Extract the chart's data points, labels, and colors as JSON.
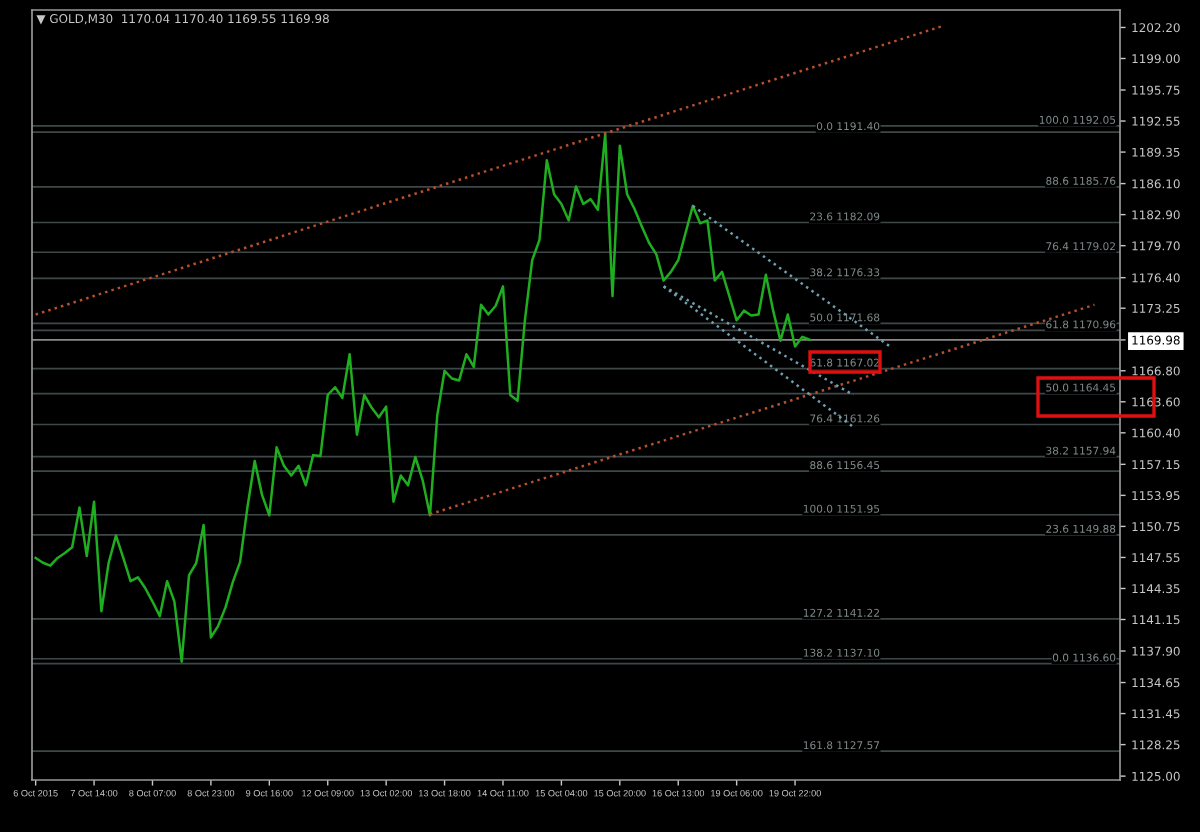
{
  "chart_data": {
    "type": "line",
    "title": "▼ GOLD,M30  1170.04 1170.40 1169.55 1169.98",
    "categories": [
      "6 Oct 2015",
      null,
      null,
      null,
      null,
      null,
      null,
      null,
      "7 Oct 14:00",
      null,
      null,
      null,
      null,
      null,
      null,
      null,
      "8 Oct 07:00",
      null,
      null,
      null,
      null,
      null,
      null,
      null,
      "8 Oct 23:00",
      null,
      null,
      null,
      null,
      null,
      null,
      null,
      "9 Oct 16:00",
      null,
      null,
      null,
      null,
      null,
      null,
      null,
      "12 Oct 09:00",
      null,
      null,
      null,
      null,
      null,
      null,
      null,
      "13 Oct 02:00",
      null,
      null,
      null,
      null,
      null,
      null,
      null,
      "13 Oct 18:00",
      null,
      null,
      null,
      null,
      null,
      null,
      null,
      "14 Oct 11:00",
      null,
      null,
      null,
      null,
      null,
      null,
      null,
      "15 Oct 04:00",
      null,
      null,
      null,
      null,
      null,
      null,
      null,
      "15 Oct 20:00",
      null,
      null,
      null,
      null,
      null,
      null,
      null,
      "16 Oct 13:00",
      null,
      null,
      null,
      null,
      null,
      null,
      null,
      "19 Oct 06:00",
      null,
      null,
      null,
      null,
      null,
      null,
      null,
      "19 Oct 22:00",
      null,
      null,
      null,
      null,
      null,
      null,
      null,
      null,
      null,
      null,
      null,
      null,
      null,
      null,
      null,
      null,
      null,
      null,
      null,
      null,
      null,
      null,
      null,
      null,
      null,
      null,
      null,
      null,
      null,
      null,
      null,
      null,
      null,
      null,
      null,
      null,
      null,
      null,
      null,
      null,
      null,
      null,
      null,
      null
    ],
    "series": [
      {
        "color": "#1fae1f",
        "values": [
          1147.5,
          1147.0,
          1146.7,
          1147.5,
          1148.0,
          1148.6,
          1152.7,
          1147.7,
          1153.3,
          1142.0,
          1147.0,
          1149.8,
          1147.5,
          1145.1,
          1145.5,
          1144.4,
          1143.0,
          1141.5,
          1145.1,
          1143.0,
          1136.8,
          1145.7,
          1147.0,
          1150.9,
          1139.3,
          1140.5,
          1142.4,
          1145.0,
          1147.1,
          1152.7,
          1157.5,
          1154.0,
          1151.9,
          1158.9,
          1157.0,
          1156.0,
          1157.0,
          1155.0,
          1158.1,
          1158.0,
          1164.3,
          1165.1,
          1164.0,
          1168.5,
          1160.2,
          1164.3,
          1163.0,
          1162.0,
          1163.1,
          1153.3,
          1156.0,
          1155.0,
          1157.9,
          1155.5,
          1151.9,
          1162.2,
          1166.8,
          1166.0,
          1165.8,
          1168.5,
          1167.2,
          1173.6,
          1172.6,
          1173.5,
          1175.5,
          1164.3,
          1163.7,
          1172.0,
          1178.2,
          1180.3,
          1188.5,
          1185.0,
          1184.0,
          1182.3,
          1185.8,
          1184.0,
          1184.5,
          1183.4,
          1191.2,
          1174.5,
          1190.0,
          1185.0,
          1183.5,
          1181.7,
          1180.0,
          1178.8,
          1176.1,
          1177.0,
          1178.2,
          1181.0,
          1183.8,
          1182.0,
          1182.3,
          1176.1,
          1177.0,
          1174.5,
          1172.0,
          1173.0,
          1172.5,
          1172.6,
          1176.7,
          1173.0,
          1169.9,
          1172.6,
          1169.3,
          1170.3,
          1170.0,
          null,
          null,
          null,
          null,
          null,
          null,
          null,
          null,
          null,
          null,
          null,
          null,
          null,
          null,
          null,
          null,
          null,
          null,
          null,
          null,
          null,
          null,
          null,
          null,
          null,
          null,
          null,
          null,
          null,
          null,
          null,
          null,
          null,
          null,
          null,
          null,
          null,
          null,
          null,
          null,
          null,
          null
        ]
      },
      {
        "color": "#b8502a",
        "line_style": "dotted",
        "values": [
          1172.6,
          null,
          null,
          null,
          null,
          null,
          null,
          null,
          null,
          null,
          null,
          null,
          null,
          null,
          null,
          null,
          null,
          null,
          null,
          null,
          null,
          null,
          null,
          null,
          null,
          null,
          null,
          null,
          null,
          null,
          null,
          null,
          null,
          null,
          null,
          null,
          null,
          null,
          null,
          null,
          null,
          null,
          null,
          null,
          null,
          null,
          null,
          null,
          null,
          null,
          null,
          null,
          null,
          null,
          null,
          null,
          null,
          null,
          null,
          null,
          null,
          null,
          null,
          null,
          null,
          null,
          null,
          null,
          null,
          null,
          null,
          null,
          null,
          null,
          null,
          null,
          null,
          null,
          null,
          null,
          null,
          null,
          null,
          null,
          null,
          null,
          null,
          null,
          null,
          null,
          null,
          null,
          null,
          null,
          null,
          null,
          null,
          null,
          null,
          null,
          null,
          null,
          null,
          null,
          null,
          null,
          null,
          null,
          null,
          null,
          null,
          null,
          null,
          null,
          null,
          null,
          null,
          null,
          null,
          null,
          null,
          null,
          null,
          null,
          1202.3,
          null,
          null,
          null,
          null,
          null,
          null,
          null,
          null,
          null,
          null,
          null,
          null,
          null,
          null,
          null,
          null,
          null,
          null,
          null,
          null,
          null,
          null,
          null,
          null
        ]
      },
      {
        "color": "#b8502a",
        "line_style": "dotted",
        "values": [
          null,
          null,
          null,
          null,
          null,
          null,
          null,
          null,
          null,
          null,
          null,
          null,
          null,
          null,
          null,
          null,
          null,
          null,
          null,
          null,
          null,
          null,
          null,
          null,
          null,
          null,
          null,
          null,
          null,
          null,
          null,
          null,
          null,
          null,
          null,
          null,
          null,
          null,
          null,
          null,
          null,
          null,
          null,
          null,
          null,
          null,
          null,
          null,
          null,
          null,
          null,
          null,
          null,
          null,
          1152.0,
          null,
          null,
          null,
          null,
          null,
          null,
          null,
          null,
          null,
          null,
          null,
          null,
          null,
          null,
          null,
          null,
          null,
          null,
          null,
          null,
          null,
          null,
          null,
          null,
          null,
          null,
          null,
          null,
          null,
          null,
          null,
          null,
          null,
          null,
          null,
          null,
          null,
          null,
          null,
          null,
          null,
          null,
          null,
          null,
          null,
          null,
          null,
          null,
          null,
          null,
          null,
          null,
          null,
          null,
          null,
          null,
          null,
          null,
          null,
          null,
          null,
          null,
          null,
          null,
          null,
          null,
          null,
          null,
          null,
          null,
          null,
          null,
          null,
          null,
          null,
          null,
          null,
          null,
          null,
          null,
          null,
          null,
          null,
          null,
          null,
          null,
          null,
          null,
          null,
          null,
          1173.6,
          null,
          null,
          null
        ]
      },
      {
        "color": "#6f9fae",
        "line_style": "dotted",
        "values": [
          null,
          null,
          null,
          null,
          null,
          null,
          null,
          null,
          null,
          null,
          null,
          null,
          null,
          null,
          null,
          null,
          null,
          null,
          null,
          null,
          null,
          null,
          null,
          null,
          null,
          null,
          null,
          null,
          null,
          null,
          null,
          null,
          null,
          null,
          null,
          null,
          null,
          null,
          null,
          null,
          null,
          null,
          null,
          null,
          null,
          null,
          null,
          null,
          null,
          null,
          null,
          null,
          null,
          null,
          null,
          null,
          null,
          null,
          null,
          null,
          null,
          null,
          null,
          null,
          null,
          null,
          null,
          null,
          null,
          null,
          null,
          null,
          null,
          null,
          null,
          null,
          null,
          null,
          null,
          null,
          null,
          null,
          null,
          null,
          null,
          null,
          null,
          null,
          null,
          null,
          1183.8,
          null,
          null,
          null,
          null,
          null,
          null,
          null,
          null,
          null,
          null,
          null,
          null,
          null,
          null,
          null,
          null,
          null,
          null,
          null,
          null,
          null,
          null,
          null,
          null,
          null,
          null,
          1169.3,
          null,
          null,
          null,
          null,
          null,
          null,
          null,
          null,
          null,
          null,
          null,
          null,
          null,
          null,
          null,
          null,
          null,
          null,
          null,
          null,
          null,
          null,
          null,
          null,
          null,
          null,
          null,
          null,
          null,
          null,
          null
        ]
      },
      {
        "color": "#6f9fae",
        "line_style": "dotted",
        "values": [
          null,
          null,
          null,
          null,
          null,
          null,
          null,
          null,
          null,
          null,
          null,
          null,
          null,
          null,
          null,
          null,
          null,
          null,
          null,
          null,
          null,
          null,
          null,
          null,
          null,
          null,
          null,
          null,
          null,
          null,
          null,
          null,
          null,
          null,
          null,
          null,
          null,
          null,
          null,
          null,
          null,
          null,
          null,
          null,
          null,
          null,
          null,
          null,
          null,
          null,
          null,
          null,
          null,
          null,
          null,
          null,
          null,
          null,
          null,
          null,
          null,
          null,
          null,
          null,
          null,
          null,
          null,
          null,
          null,
          null,
          null,
          null,
          null,
          null,
          null,
          null,
          null,
          null,
          null,
          null,
          null,
          null,
          null,
          null,
          null,
          null,
          1175.5,
          null,
          null,
          null,
          null,
          null,
          null,
          null,
          null,
          null,
          null,
          null,
          null,
          null,
          null,
          null,
          null,
          null,
          null,
          null,
          null,
          null,
          null,
          null,
          null,
          null,
          1164.3,
          null,
          null,
          null,
          null,
          null,
          null,
          null,
          null,
          null,
          null,
          null,
          null,
          null,
          null,
          null,
          null,
          null,
          null,
          null,
          null,
          null,
          null,
          null,
          null,
          null,
          null,
          null,
          null,
          null,
          null,
          null,
          null,
          null,
          null,
          null,
          null
        ]
      },
      {
        "color": "#6f9fae",
        "line_style": "dotted",
        "values": [
          null,
          null,
          null,
          null,
          null,
          null,
          null,
          null,
          null,
          null,
          null,
          null,
          null,
          null,
          null,
          null,
          null,
          null,
          null,
          null,
          null,
          null,
          null,
          null,
          null,
          null,
          null,
          null,
          null,
          null,
          null,
          null,
          null,
          null,
          null,
          null,
          null,
          null,
          null,
          null,
          null,
          null,
          null,
          null,
          null,
          null,
          null,
          null,
          null,
          null,
          null,
          null,
          null,
          null,
          null,
          null,
          null,
          null,
          null,
          null,
          null,
          null,
          null,
          null,
          null,
          null,
          null,
          null,
          null,
          null,
          null,
          null,
          null,
          null,
          null,
          null,
          null,
          null,
          null,
          null,
          null,
          null,
          null,
          null,
          null,
          null,
          1175.5,
          null,
          null,
          null,
          null,
          null,
          null,
          null,
          null,
          null,
          null,
          null,
          null,
          null,
          null,
          null,
          null,
          null,
          null,
          null,
          null,
          null,
          null,
          null,
          null,
          null,
          1161.0,
          null,
          null,
          null,
          null,
          null,
          null,
          null,
          null,
          null,
          null,
          null,
          null,
          null,
          null,
          null,
          null,
          null,
          null,
          null,
          null,
          null,
          null,
          null,
          null,
          null,
          null,
          null,
          null,
          null,
          null,
          null,
          null,
          null,
          null,
          null,
          null
        ]
      }
    ],
    "ylim": [
      1124.6,
      1204.0
    ],
    "yticks": [
      {
        "value": 1202.2,
        "label": "1202.20"
      },
      {
        "value": 1199.0,
        "label": "1199.00"
      },
      {
        "value": 1195.75,
        "label": "1195.75"
      },
      {
        "value": 1192.55,
        "label": "1192.55"
      },
      {
        "value": 1189.35,
        "label": "1189.35"
      },
      {
        "value": 1186.1,
        "label": "1186.10"
      },
      {
        "value": 1182.9,
        "label": "1182.90"
      },
      {
        "value": 1179.7,
        "label": "1179.70"
      },
      {
        "value": 1176.4,
        "label": "1176.40"
      },
      {
        "value": 1173.25,
        "label": "1173.25"
      },
      {
        "value": 1169.98,
        "label": "1169.98"
      },
      {
        "value": 1166.8,
        "label": "1166.80"
      },
      {
        "value": 1163.6,
        "label": "1163.60"
      },
      {
        "value": 1160.4,
        "label": "1160.40"
      },
      {
        "value": 1157.15,
        "label": "1157.15"
      },
      {
        "value": 1153.95,
        "label": "1153.95"
      },
      {
        "value": 1150.75,
        "label": "1150.75"
      },
      {
        "value": 1147.55,
        "label": "1147.55"
      },
      {
        "value": 1144.35,
        "label": "1144.35"
      },
      {
        "value": 1141.15,
        "label": "1141.15"
      },
      {
        "value": 1137.9,
        "label": "1137.90"
      },
      {
        "value": 1134.65,
        "label": "1134.65"
      },
      {
        "value": 1131.45,
        "label": "1131.45"
      },
      {
        "value": 1128.25,
        "label": "1128.25"
      },
      {
        "value": 1125.0,
        "label": "1125.00"
      }
    ],
    "ref_lines": [
      {
        "axis": "y",
        "value": 1169.98,
        "color": "#8a8a8a"
      },
      {
        "axis": "y",
        "value": 1191.4,
        "label": "0.0 1191.40",
        "color": "#3e4848"
      },
      {
        "axis": "y",
        "value": 1182.09,
        "label": "23.6 1182.09",
        "color": "#3e4848"
      },
      {
        "axis": "y",
        "value": 1176.33,
        "label": "38.2 1176.33",
        "color": "#3e4848"
      },
      {
        "axis": "y",
        "value": 1171.68,
        "label": "50.0 1171.68",
        "color": "#3e4848"
      },
      {
        "axis": "y",
        "value": 1167.02,
        "label": "61.8 1167.02",
        "color": "#3e4848"
      },
      {
        "axis": "y",
        "value": 1161.26,
        "label": "76.4 1161.26",
        "color": "#3e4848"
      },
      {
        "axis": "y",
        "value": 1156.45,
        "label": "88.6 1156.45",
        "color": "#3e4848"
      },
      {
        "axis": "y",
        "value": 1151.95,
        "label": "100.0 1151.95",
        "color": "#3e4848"
      },
      {
        "axis": "y",
        "value": 1141.22,
        "label": "127.2 1141.22",
        "color": "#3e4848"
      },
      {
        "axis": "y",
        "value": 1137.1,
        "label": "138.2 1137.10",
        "color": "#3e4848"
      },
      {
        "axis": "y",
        "value": 1127.57,
        "label": "161.8 1127.57",
        "color": "#3e4848"
      },
      {
        "axis": "y",
        "value": 1192.05,
        "label": "100.0 1192.05",
        "color": "#3e4848"
      },
      {
        "axis": "y",
        "value": 1185.76,
        "label": "88.6 1185.76",
        "color": "#3e4848"
      },
      {
        "axis": "y",
        "value": 1179.02,
        "label": "76.4 1179.02",
        "color": "#3e4848"
      },
      {
        "axis": "y",
        "value": 1170.96,
        "label": "61.8 1170.96",
        "color": "#3e4848"
      },
      {
        "axis": "y",
        "value": 1164.45,
        "label": "50.0 1164.45",
        "color": "#3e4848"
      },
      {
        "axis": "y",
        "value": 1157.94,
        "label": "38.2 1157.94",
        "color": "#3e4848"
      },
      {
        "axis": "y",
        "value": 1149.88,
        "label": "23.6 1149.88",
        "color": "#3e4848"
      },
      {
        "axis": "y",
        "value": 1136.6,
        "label": "0.0 1136.60",
        "color": "#3e4848"
      }
    ],
    "grid": false,
    "legend": false,
    "marker": "none"
  }
}
